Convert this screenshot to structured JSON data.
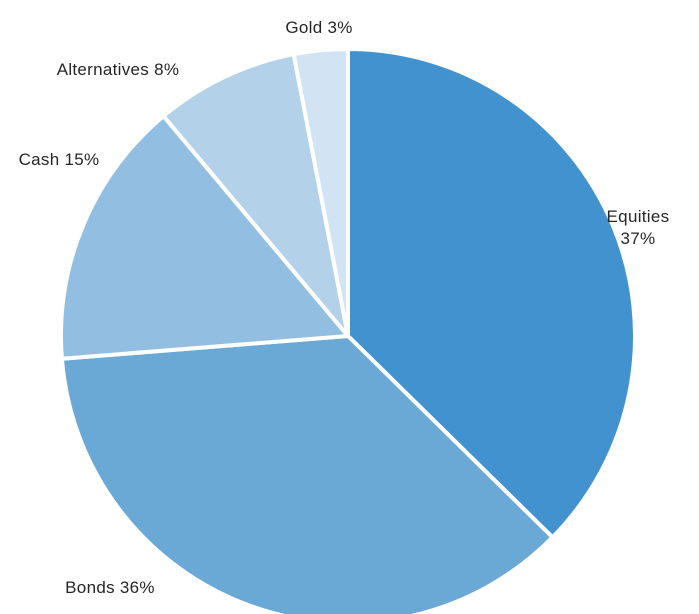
{
  "chart_data": {
    "type": "pie",
    "title": "",
    "start_angle_deg": 90,
    "direction": "clockwise",
    "slices": [
      {
        "label": "Equities",
        "value": 37,
        "display": [
          "Equities",
          "37%"
        ],
        "color": "#4292cf"
      },
      {
        "label": "Bonds",
        "value": 36,
        "display": [
          "Bonds 36%"
        ],
        "color": "#6aa8d6"
      },
      {
        "label": "Cash",
        "value": 15,
        "display": [
          "Cash 15%"
        ],
        "color": "#92bfe1"
      },
      {
        "label": "Alternatives",
        "value": 8,
        "display": [
          "Alternatives 8%"
        ],
        "color": "#b3d2ea"
      },
      {
        "label": "Gold",
        "value": 3,
        "display": [
          "Gold 3%"
        ],
        "color": "#d2e4f3"
      }
    ],
    "legend": "none",
    "separator_color": "#ffffff"
  }
}
